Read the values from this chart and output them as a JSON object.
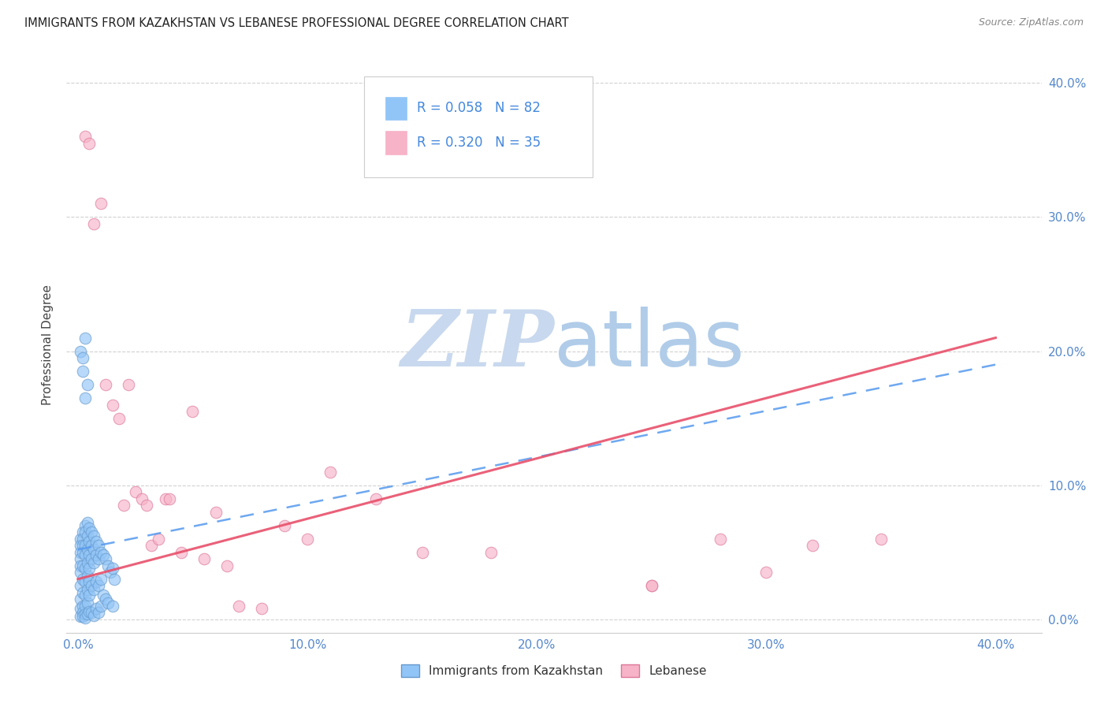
{
  "title": "IMMIGRANTS FROM KAZAKHSTAN VS LEBANESE PROFESSIONAL DEGREE CORRELATION CHART",
  "source": "Source: ZipAtlas.com",
  "ylabel_label": "Professional Degree",
  "x_tick_labels": [
    "0.0%",
    "10.0%",
    "20.0%",
    "30.0%",
    "40.0%"
  ],
  "x_tick_values": [
    0.0,
    0.1,
    0.2,
    0.3,
    0.4
  ],
  "y_tick_labels": [
    "0.0%",
    "10.0%",
    "20.0%",
    "30.0%",
    "40.0%"
  ],
  "y_tick_values": [
    0.0,
    0.1,
    0.2,
    0.3,
    0.4
  ],
  "xlim": [
    -0.005,
    0.42
  ],
  "ylim": [
    -0.01,
    0.42
  ],
  "legend_R1": "R = 0.058",
  "legend_N1": "N = 82",
  "legend_R2": "R = 0.320",
  "legend_N2": "N = 35",
  "scatter1_color": "#92c5f7",
  "scatter2_color": "#f7b3c8",
  "line1_color": "#5599ee",
  "line2_color": "#e8506a",
  "background_color": "#ffffff",
  "watermark_zip": "ZIP",
  "watermark_atlas": "atlas",
  "watermark_color_zip": "#c8d8ee",
  "watermark_color_atlas": "#b0cce8",
  "bottom_legend_label1": "Immigrants from Kazakhstan",
  "bottom_legend_label2": "Lebanese",
  "kaz_x": [
    0.001,
    0.001,
    0.001,
    0.001,
    0.001,
    0.001,
    0.001,
    0.001,
    0.001,
    0.001,
    0.002,
    0.002,
    0.002,
    0.002,
    0.002,
    0.002,
    0.002,
    0.002,
    0.002,
    0.002,
    0.003,
    0.003,
    0.003,
    0.003,
    0.003,
    0.003,
    0.003,
    0.003,
    0.003,
    0.003,
    0.004,
    0.004,
    0.004,
    0.004,
    0.004,
    0.004,
    0.004,
    0.004,
    0.005,
    0.005,
    0.005,
    0.005,
    0.005,
    0.005,
    0.005,
    0.006,
    0.006,
    0.006,
    0.006,
    0.006,
    0.007,
    0.007,
    0.007,
    0.007,
    0.007,
    0.008,
    0.008,
    0.008,
    0.008,
    0.009,
    0.009,
    0.009,
    0.009,
    0.01,
    0.01,
    0.01,
    0.011,
    0.011,
    0.012,
    0.012,
    0.013,
    0.013,
    0.014,
    0.015,
    0.015,
    0.016,
    0.001,
    0.002,
    0.003,
    0.003,
    0.004,
    0.002
  ],
  "kaz_y": [
    0.06,
    0.055,
    0.05,
    0.045,
    0.04,
    0.035,
    0.025,
    0.015,
    0.008,
    0.002,
    0.065,
    0.06,
    0.055,
    0.05,
    0.04,
    0.03,
    0.02,
    0.01,
    0.005,
    0.002,
    0.07,
    0.065,
    0.055,
    0.048,
    0.038,
    0.028,
    0.018,
    0.01,
    0.004,
    0.001,
    0.072,
    0.062,
    0.052,
    0.042,
    0.032,
    0.022,
    0.012,
    0.004,
    0.068,
    0.058,
    0.048,
    0.038,
    0.028,
    0.018,
    0.006,
    0.065,
    0.055,
    0.045,
    0.025,
    0.005,
    0.062,
    0.052,
    0.042,
    0.022,
    0.003,
    0.058,
    0.048,
    0.028,
    0.008,
    0.055,
    0.045,
    0.025,
    0.005,
    0.05,
    0.03,
    0.01,
    0.048,
    0.018,
    0.045,
    0.015,
    0.04,
    0.012,
    0.035,
    0.038,
    0.01,
    0.03,
    0.2,
    0.185,
    0.165,
    0.21,
    0.175,
    0.195
  ],
  "leb_x": [
    0.003,
    0.005,
    0.007,
    0.01,
    0.012,
    0.015,
    0.018,
    0.02,
    0.022,
    0.025,
    0.028,
    0.03,
    0.032,
    0.035,
    0.038,
    0.04,
    0.045,
    0.05,
    0.055,
    0.06,
    0.065,
    0.07,
    0.08,
    0.09,
    0.1,
    0.11,
    0.13,
    0.15,
    0.18,
    0.25,
    0.3,
    0.32,
    0.35,
    0.25,
    0.28
  ],
  "leb_y": [
    0.36,
    0.355,
    0.295,
    0.31,
    0.175,
    0.16,
    0.15,
    0.085,
    0.175,
    0.095,
    0.09,
    0.085,
    0.055,
    0.06,
    0.09,
    0.09,
    0.05,
    0.155,
    0.045,
    0.08,
    0.04,
    0.01,
    0.008,
    0.07,
    0.06,
    0.11,
    0.09,
    0.05,
    0.05,
    0.025,
    0.035,
    0.055,
    0.06,
    0.025,
    0.06
  ],
  "line1_x0": 0.0,
  "line1_x1": 0.4,
  "line1_y0": 0.052,
  "line1_y1": 0.19,
  "line2_x0": 0.0,
  "line2_x1": 0.4,
  "line2_y0": 0.03,
  "line2_y1": 0.21
}
